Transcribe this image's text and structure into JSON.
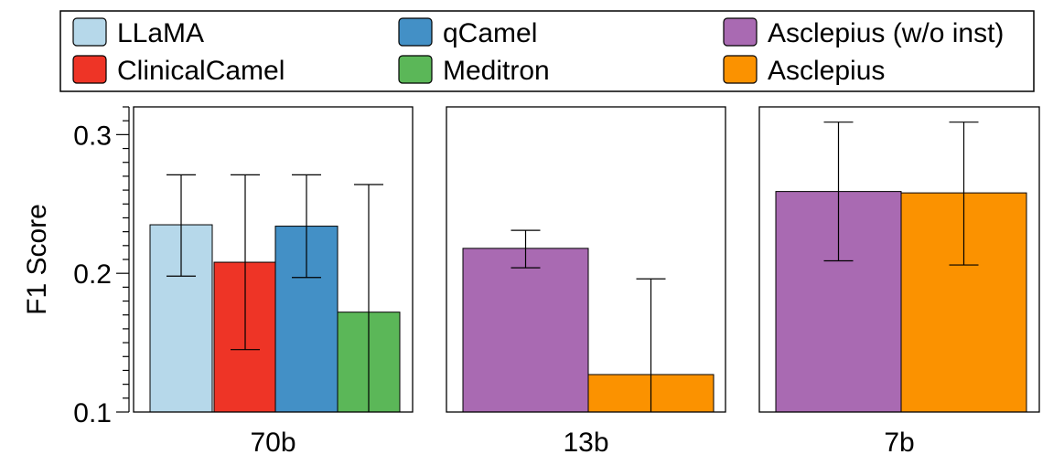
{
  "chart_data": {
    "type": "bar",
    "ylabel": "F1 Score",
    "ylim": [
      0.1,
      0.32
    ],
    "yticks": [
      0.1,
      0.2,
      0.3
    ],
    "ytick_labels": [
      "0.1",
      "0.2",
      "0.3"
    ],
    "legend_position": "top",
    "series": [
      {
        "name": "LLaMA",
        "color": "#b6d8ea"
      },
      {
        "name": "qCamel",
        "color": "#4390c6"
      },
      {
        "name": "Asclepius (w/o inst)",
        "color": "#a96ab2"
      },
      {
        "name": "ClinicalCamel",
        "color": "#ee3426"
      },
      {
        "name": "Meditron",
        "color": "#5bb758"
      },
      {
        "name": "Asclepius",
        "color": "#fb9200"
      }
    ],
    "panels": [
      {
        "label": "70b",
        "bars": [
          {
            "series": "LLaMA",
            "value": 0.235,
            "err_low": 0.198,
            "err_high": 0.271
          },
          {
            "series": "ClinicalCamel",
            "value": 0.208,
            "err_low": 0.145,
            "err_high": 0.271
          },
          {
            "series": "qCamel",
            "value": 0.234,
            "err_low": 0.197,
            "err_high": 0.271
          },
          {
            "series": "Meditron",
            "value": 0.172,
            "err_low": 0.1,
            "err_high": 0.264
          }
        ]
      },
      {
        "label": "13b",
        "bars": [
          {
            "series": "Asclepius (w/o inst)",
            "value": 0.218,
            "err_low": 0.204,
            "err_high": 0.231
          },
          {
            "series": "Asclepius",
            "value": 0.127,
            "err_low": 0.1,
            "err_high": 0.196
          }
        ]
      },
      {
        "label": "7b",
        "bars": [
          {
            "series": "Asclepius (w/o inst)",
            "value": 0.259,
            "err_low": 0.209,
            "err_high": 0.309
          },
          {
            "series": "Asclepius",
            "value": 0.258,
            "err_low": 0.206,
            "err_high": 0.309
          }
        ]
      }
    ]
  }
}
